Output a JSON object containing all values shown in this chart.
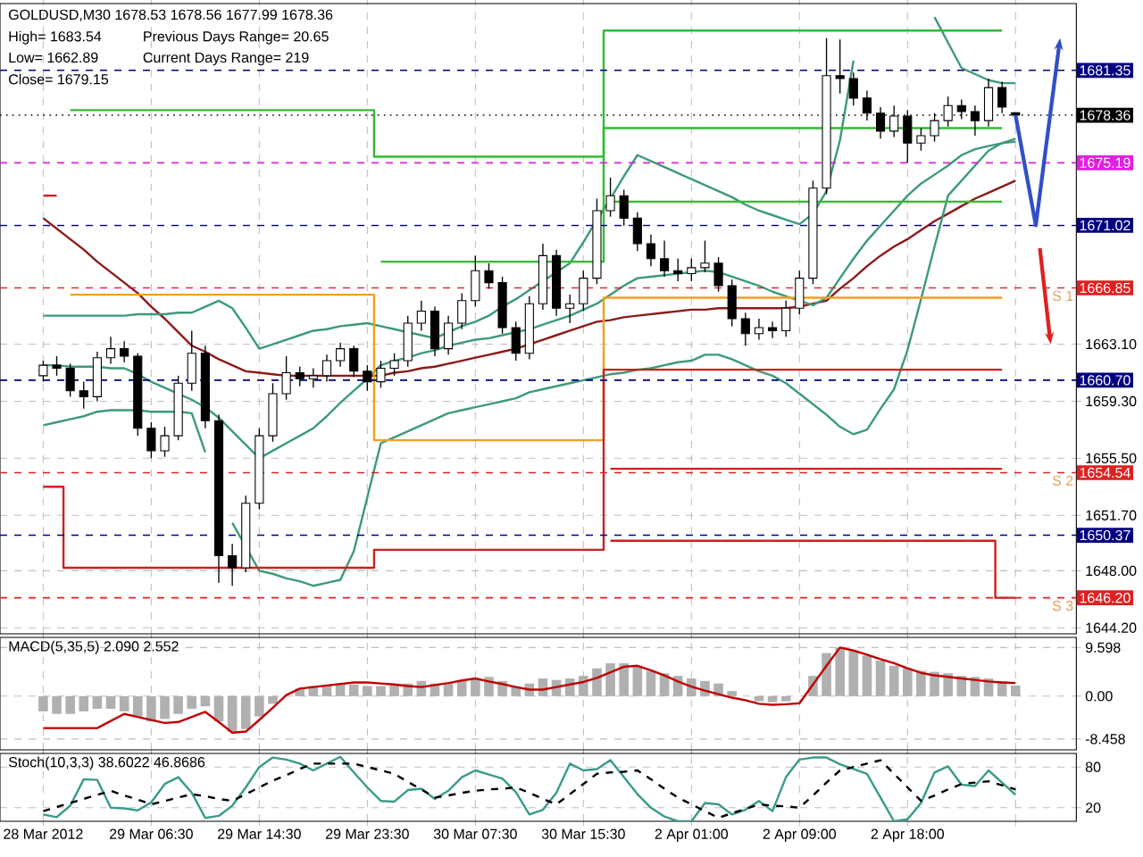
{
  "chart_data": [
    {
      "type": "candlestick",
      "title": "GOLDUSD,M30 1678.53 1678.56 1677.99 1678.36",
      "annotations": [
        "High= 1683.54",
        "Previous Days Range= 20.65",
        "Low= 1662.89",
        "Current Days Range= 219",
        "Close= 1679.15",
        {
          "text": "S 1",
          "y": 1666.85
        },
        {
          "text": "S 2",
          "y": 1654.54
        },
        {
          "text": "S 3",
          "y": 1646.2
        }
      ],
      "categories": [
        null,
        null,
        null,
        null,
        null,
        null,
        null,
        null,
        null,
        null,
        null,
        null,
        null,
        null,
        null,
        null,
        null,
        null,
        null,
        null,
        null,
        null,
        null,
        null,
        null,
        null,
        null,
        null,
        null,
        null,
        null,
        null,
        null,
        null,
        null,
        null,
        null,
        null,
        null,
        null,
        null,
        null,
        null,
        null,
        null,
        null,
        null,
        null,
        null,
        null,
        null,
        null,
        null,
        null,
        null,
        null,
        null,
        null,
        null,
        null,
        null,
        null,
        null,
        null,
        null,
        null,
        null,
        null,
        null,
        null,
        null,
        null,
        null
      ],
      "ohlc": [
        [
          1661.0,
          1662.0,
          1660.6,
          1661.7
        ],
        [
          1661.7,
          1662.3,
          1661.0,
          1661.5
        ],
        [
          1661.5,
          1661.8,
          1659.6,
          1660.0
        ],
        [
          1660.0,
          1660.6,
          1658.8,
          1659.6
        ],
        [
          1659.6,
          1662.6,
          1659.3,
          1662.2
        ],
        [
          1662.2,
          1663.6,
          1661.8,
          1662.8
        ],
        [
          1662.8,
          1663.3,
          1661.9,
          1662.3
        ],
        [
          1662.3,
          1662.5,
          1657.0,
          1657.5
        ],
        [
          1657.5,
          1657.9,
          1655.5,
          1656.0
        ],
        [
          1656.0,
          1657.6,
          1655.6,
          1657.0
        ],
        [
          1657.0,
          1661.0,
          1656.7,
          1660.5
        ],
        [
          1660.5,
          1664.0,
          1660.0,
          1662.5
        ],
        [
          1662.5,
          1663.0,
          1657.5,
          1658.0
        ],
        [
          1658.0,
          1658.4,
          1647.2,
          1649.0
        ],
        [
          1649.0,
          1649.8,
          1647.0,
          1648.2
        ],
        [
          1648.2,
          1653.0,
          1647.9,
          1652.5
        ],
        [
          1652.5,
          1657.5,
          1652.1,
          1657.0
        ],
        [
          1657.0,
          1660.5,
          1656.6,
          1659.8
        ],
        [
          1659.8,
          1662.3,
          1659.4,
          1661.2
        ],
        [
          1661.2,
          1661.6,
          1660.3,
          1660.8
        ],
        [
          1660.8,
          1661.5,
          1660.2,
          1661.0
        ],
        [
          1661.0,
          1662.4,
          1660.6,
          1662.0
        ],
        [
          1662.0,
          1663.2,
          1661.6,
          1662.8
        ],
        [
          1662.8,
          1663.0,
          1660.9,
          1661.3
        ],
        [
          1661.3,
          1661.7,
          1660.0,
          1660.6
        ],
        [
          1660.6,
          1662.0,
          1660.2,
          1661.5
        ],
        [
          1661.5,
          1662.5,
          1661.0,
          1662.0
        ],
        [
          1662.0,
          1665.0,
          1661.6,
          1664.5
        ],
        [
          1664.5,
          1666.0,
          1664.0,
          1665.3
        ],
        [
          1665.3,
          1665.6,
          1662.3,
          1662.8
        ],
        [
          1662.8,
          1665.0,
          1662.4,
          1664.5
        ],
        [
          1664.5,
          1666.5,
          1664.1,
          1666.0
        ],
        [
          1666.0,
          1669.0,
          1665.6,
          1668.0
        ],
        [
          1668.0,
          1668.5,
          1666.8,
          1667.2
        ],
        [
          1667.2,
          1667.6,
          1663.8,
          1664.2
        ],
        [
          1664.2,
          1664.6,
          1662.0,
          1662.5
        ],
        [
          1662.5,
          1666.3,
          1662.1,
          1665.8
        ],
        [
          1665.8,
          1669.8,
          1665.4,
          1669.0
        ],
        [
          1669.0,
          1669.4,
          1665.0,
          1665.5
        ],
        [
          1665.5,
          1666.4,
          1664.5,
          1665.8
        ],
        [
          1665.8,
          1668.0,
          1665.3,
          1667.5
        ],
        [
          1667.5,
          1672.8,
          1667.1,
          1672.0
        ],
        [
          1672.0,
          1674.2,
          1671.6,
          1673.0
        ],
        [
          1673.0,
          1673.4,
          1671.0,
          1671.5
        ],
        [
          1671.5,
          1671.9,
          1669.3,
          1669.8
        ],
        [
          1669.8,
          1670.4,
          1668.3,
          1668.8
        ],
        [
          1668.8,
          1670.0,
          1667.6,
          1668.0
        ],
        [
          1668.0,
          1668.8,
          1667.3,
          1667.8
        ],
        [
          1667.8,
          1668.8,
          1667.3,
          1668.2
        ],
        [
          1668.2,
          1670.0,
          1667.9,
          1668.5
        ],
        [
          1668.5,
          1668.9,
          1666.6,
          1667.0
        ],
        [
          1667.0,
          1667.4,
          1664.3,
          1664.8
        ],
        [
          1664.8,
          1665.2,
          1663.0,
          1663.8
        ],
        [
          1663.8,
          1664.8,
          1663.4,
          1664.2
        ],
        [
          1664.2,
          1664.6,
          1663.5,
          1664.0
        ],
        [
          1664.0,
          1666.0,
          1663.6,
          1665.5
        ],
        [
          1665.5,
          1668.0,
          1665.1,
          1667.5
        ],
        [
          1667.5,
          1674.0,
          1667.1,
          1673.5
        ],
        [
          1673.5,
          1683.5,
          1673.1,
          1681.0
        ],
        [
          1681.0,
          1683.4,
          1679.8,
          1680.8
        ],
        [
          1680.8,
          1681.2,
          1679.0,
          1679.5
        ],
        [
          1679.5,
          1680.0,
          1678.0,
          1678.5
        ],
        [
          1678.5,
          1678.9,
          1676.8,
          1677.3
        ],
        [
          1677.3,
          1679.0,
          1676.9,
          1678.3
        ],
        [
          1678.3,
          1678.7,
          1675.2,
          1676.5
        ],
        [
          1676.5,
          1677.5,
          1676.0,
          1677.0
        ],
        [
          1677.0,
          1678.5,
          1676.6,
          1678.0
        ],
        [
          1678.0,
          1679.6,
          1677.6,
          1679.0
        ],
        [
          1679.0,
          1679.4,
          1678.1,
          1678.6
        ],
        [
          1678.6,
          1679.0,
          1677.0,
          1678.0
        ],
        [
          1678.0,
          1680.8,
          1677.6,
          1680.2
        ],
        [
          1680.2,
          1680.6,
          1678.5,
          1678.9
        ],
        [
          1678.53,
          1678.56,
          1677.99,
          1678.36
        ]
      ],
      "series": [
        {
          "type": "line",
          "color": "#8b1a1a",
          "values": [
            1671.5,
            1670.8,
            1670.1,
            1669.4,
            1668.6,
            1667.9,
            1667.2,
            1666.5,
            1665.6,
            1664.8,
            1663.9,
            1663.0,
            1662.6,
            1662.1,
            1661.7,
            1661.3,
            1661.2,
            1661.1,
            1661.0,
            1661.0,
            1661.0,
            1661.0,
            1661.0,
            1661.0,
            1661.0,
            1661.0,
            1661.2,
            1661.3,
            1661.5,
            1661.6,
            1661.8,
            1662.0,
            1662.2,
            1662.4,
            1662.6,
            1662.8,
            1663.1,
            1663.4,
            1663.7,
            1664.0,
            1664.3,
            1664.6,
            1664.7,
            1664.9,
            1665.0,
            1665.1,
            1665.2,
            1665.3,
            1665.4,
            1665.4,
            1665.5,
            1665.5,
            1665.5,
            1665.5,
            1665.5,
            1665.5,
            1665.6,
            1665.8,
            1666.0,
            1666.8,
            1667.5,
            1668.3,
            1669.0,
            1669.6,
            1670.1,
            1670.7,
            1671.3,
            1671.8,
            1672.3,
            1672.8,
            1673.2,
            1673.6,
            1674.0
          ]
        },
        {
          "type": "line",
          "color": "#3c9a7a",
          "values": [
            1665.0,
            1665.0,
            1665.0,
            1665.0,
            1665.0,
            1665.0,
            1665.0,
            1665.1,
            1665.1,
            1665.1,
            1665.2,
            1665.2,
            1665.6,
            1666.0,
            1665.5,
            1664.2,
            1662.8,
            1663.1,
            1663.4,
            1663.7,
            1664.0,
            1664.1,
            1664.3,
            1664.4,
            1664.5,
            1664.3,
            1664.1,
            1663.9,
            1663.7,
            1663.5,
            1663.9,
            1664.3,
            1664.6,
            1665.0,
            1665.6,
            1666.1,
            1666.7,
            1667.3,
            1667.9,
            1668.5,
            1669.9,
            1671.4,
            1672.8,
            1674.3,
            1675.7,
            1675.3,
            1674.9,
            1674.5,
            1674.1,
            1673.7,
            1673.3,
            1672.9,
            1672.4,
            1672.0,
            1671.7,
            1671.4,
            1671.1,
            1671.8,
            1673.3,
            1676.7,
            1682.0,
            null,
            null,
            null,
            null,
            null,
            1684.9,
            1683.2,
            1681.5,
            1681.1,
            1680.7,
            1680.5,
            1680.5
          ]
        },
        {
          "type": "line",
          "color": "#3c9a7a",
          "values": [
            1661.7,
            1661.7,
            1661.6,
            1661.6,
            1661.6,
            1661.5,
            1661.5,
            1661.1,
            1660.6,
            1660.2,
            1659.8,
            1659.4,
            1658.9,
            1658.2,
            1657.3,
            1656.4,
            1655.5,
            1656.0,
            1656.5,
            1657.0,
            1657.5,
            1658.3,
            1659.2,
            1660.0,
            1660.8,
            1661.7,
            1662.0,
            1662.2,
            1662.5,
            1662.7,
            1663.0,
            1663.2,
            1663.4,
            1663.5,
            1663.7,
            1663.9,
            1664.1,
            1664.4,
            1664.7,
            1665.0,
            1665.4,
            1665.8,
            1666.4,
            1667.0,
            1667.5,
            1667.6,
            1667.7,
            1667.8,
            1667.9,
            1668.0,
            1667.9,
            1667.6,
            1667.3,
            1667.0,
            1666.6,
            1666.3,
            1666.0,
            1665.7,
            1666.2,
            1667.5,
            1668.8,
            1670.0,
            1671.0,
            1672.0,
            1673.0,
            1673.8,
            1674.4,
            1675.0,
            1675.7,
            1676.1,
            1676.3,
            1676.5,
            1676.8
          ]
        },
        {
          "type": "line",
          "color": "#3c9a7a",
          "values": [
            1657.7,
            1657.9,
            1658.1,
            1658.3,
            1658.6,
            1658.7,
            1658.7,
            1658.7,
            1658.6,
            1658.6,
            1658.6,
            1658.5,
            1655.9,
            null,
            1651.2,
            1649.6,
            1648.0,
            1647.8,
            1647.5,
            1647.3,
            1647.0,
            1647.2,
            1647.4,
            1649.3,
            1652.9,
            1656.5,
            1656.9,
            1657.3,
            1657.7,
            1658.1,
            1658.5,
            1658.7,
            1658.9,
            1659.1,
            1659.3,
            1659.5,
            1659.9,
            1660.1,
            1660.3,
            1660.5,
            1660.7,
            1660.9,
            1661.1,
            1661.2,
            1661.4,
            1661.5,
            1661.7,
            1661.9,
            1662.0,
            1662.4,
            1662.4,
            1662.1,
            1661.7,
            1661.3,
            1661.0,
            1660.5,
            1659.8,
            1659.1,
            1658.4,
            1657.6,
            1657.1,
            1657.4,
            1658.8,
            1660.1,
            1662.7,
            1666.1,
            1669.6,
            1673.0,
            1674.0,
            1675.0,
            1676.0,
            1676.5,
            1676.6
          ]
        },
        {
          "type": "step",
          "color": "#33bb33",
          "values": [
            null,
            null,
            1678.7,
            1678.7,
            1678.7,
            1678.7,
            1678.7,
            1678.7,
            1678.7,
            1678.7,
            1678.7,
            1678.7,
            1678.7,
            1678.7,
            1678.7,
            1678.7,
            1678.7,
            1678.7,
            1678.7,
            1678.7,
            1678.7,
            1678.7,
            1678.7,
            1678.7,
            1678.7,
            1675.6,
            1675.6,
            1675.6,
            1675.6,
            1675.6,
            1675.6,
            1675.6,
            1675.6,
            1675.6,
            1675.6,
            1675.6,
            1675.6,
            1675.6,
            1675.6,
            1675.6,
            1675.6,
            1675.6,
            1684.0,
            1684.0,
            1684.0,
            1684.0,
            1684.0,
            1684.0,
            1684.0,
            1684.0,
            1684.0,
            1684.0,
            1684.0,
            1684.0,
            1684.0,
            1684.0,
            1684.0,
            1684.0,
            1684.0,
            1684.0,
            1684.0,
            1684.0,
            1684.0,
            1684.0,
            1684.0,
            1684.0,
            1684.0,
            1684.0,
            1684.0,
            1684.0,
            1684.0,
            1684.0,
            null
          ]
        },
        {
          "type": "step",
          "color": "#33bb33",
          "values": [
            null,
            null,
            null,
            null,
            null,
            null,
            null,
            null,
            null,
            null,
            null,
            null,
            null,
            null,
            null,
            null,
            null,
            null,
            null,
            null,
            null,
            null,
            null,
            null,
            null,
            1668.6,
            1668.6,
            1668.6,
            1668.6,
            1668.6,
            1668.6,
            1668.6,
            1668.6,
            1668.6,
            1668.6,
            1668.6,
            1668.6,
            1668.6,
            1668.6,
            1668.6,
            1668.6,
            1668.6,
            1677.5,
            1677.5,
            1677.5,
            1677.5,
            1677.5,
            1677.5,
            1677.5,
            1677.5,
            1677.5,
            1677.5,
            1677.5,
            1677.5,
            1677.5,
            1677.5,
            1677.5,
            1677.5,
            1677.5,
            1677.5,
            1677.5,
            1677.5,
            1677.5,
            1677.5,
            1677.5,
            1677.5,
            1677.5,
            1677.5,
            1677.5,
            1677.5,
            1677.5,
            1677.5,
            null
          ]
        },
        {
          "type": "step",
          "color": "#33bb33",
          "values": [
            null,
            null,
            null,
            null,
            null,
            null,
            null,
            null,
            null,
            null,
            null,
            null,
            null,
            null,
            null,
            null,
            null,
            null,
            null,
            null,
            null,
            null,
            null,
            null,
            null,
            null,
            null,
            null,
            null,
            null,
            null,
            null,
            null,
            null,
            null,
            null,
            null,
            null,
            null,
            null,
            null,
            null,
            1672.6,
            1672.6,
            1672.6,
            1672.6,
            1672.6,
            1672.6,
            1672.6,
            1672.6,
            1672.6,
            1672.6,
            1672.6,
            1672.6,
            1672.6,
            1672.6,
            1672.6,
            1672.6,
            1672.6,
            1672.6,
            1672.6,
            1672.6,
            1672.6,
            1672.6,
            1672.6,
            1672.6,
            1672.6,
            1672.6,
            1672.6,
            1672.6,
            1672.6,
            1672.6,
            null
          ]
        },
        {
          "type": "step",
          "color": "#f0a020",
          "values": [
            null,
            null,
            1666.4,
            1666.4,
            1666.4,
            1666.4,
            1666.4,
            1666.4,
            1666.4,
            1666.4,
            1666.4,
            1666.4,
            1666.4,
            1666.4,
            1666.4,
            1666.4,
            1666.4,
            1666.4,
            1666.4,
            1666.4,
            1666.4,
            1666.4,
            1666.4,
            1666.4,
            1666.4,
            1656.7,
            1656.7,
            1656.7,
            1656.7,
            1656.7,
            1656.7,
            1656.7,
            1656.7,
            1656.7,
            1656.7,
            1656.7,
            1656.7,
            1656.7,
            1656.7,
            1656.7,
            1656.7,
            1656.7,
            1666.2,
            1666.2,
            1666.2,
            1666.2,
            1666.2,
            1666.2,
            1666.2,
            1666.2,
            1666.2,
            1666.2,
            1666.2,
            1666.2,
            1666.2,
            1666.2,
            1666.2,
            1666.2,
            1666.2,
            1666.2,
            1666.2,
            1666.2,
            1666.2,
            1666.2,
            1666.2,
            1666.2,
            1666.2,
            1666.2,
            1666.2,
            1666.2,
            1666.2,
            1666.2,
            null
          ]
        },
        {
          "type": "step",
          "color": "#cc2020",
          "values": [
            1653.6,
            1653.6,
            1648.2,
            1648.2,
            1648.2,
            1648.2,
            1648.2,
            1648.2,
            1648.2,
            1648.2,
            1648.2,
            1648.2,
            1648.2,
            1648.2,
            1648.2,
            1648.2,
            1648.2,
            1648.2,
            1648.2,
            1648.2,
            1648.2,
            1648.2,
            1648.2,
            1648.2,
            1648.2,
            1649.4,
            1649.4,
            1649.4,
            1649.4,
            1649.4,
            1649.4,
            1649.4,
            1649.4,
            1649.4,
            1649.4,
            1649.4,
            1649.4,
            1649.4,
            1649.4,
            1649.4,
            1649.4,
            1649.4,
            1661.4,
            1661.4,
            1661.4,
            1661.4,
            1661.4,
            1661.4,
            1661.4,
            1661.4,
            1661.4,
            1661.4,
            1661.4,
            1661.4,
            1661.4,
            1661.4,
            1661.4,
            1661.4,
            1661.4,
            1661.4,
            1661.4,
            1661.4,
            1661.4,
            1661.4,
            1661.4,
            1661.4,
            1661.4,
            1661.4,
            1661.4,
            1661.4,
            1661.4,
            1661.4,
            null
          ]
        },
        {
          "type": "step",
          "color": "#cc2020",
          "values": [
            null,
            null,
            null,
            null,
            null,
            null,
            null,
            null,
            null,
            null,
            null,
            null,
            null,
            null,
            null,
            null,
            null,
            null,
            null,
            null,
            null,
            null,
            null,
            null,
            null,
            null,
            null,
            null,
            null,
            null,
            null,
            null,
            null,
            null,
            null,
            null,
            null,
            null,
            null,
            null,
            null,
            null,
            1654.8,
            1654.8,
            1654.8,
            1654.8,
            1654.8,
            1654.8,
            1654.8,
            1654.8,
            1654.8,
            1654.8,
            1654.8,
            1654.8,
            1654.8,
            1654.8,
            1654.8,
            1654.8,
            1654.8,
            1654.8,
            1654.8,
            1654.8,
            1654.8,
            1654.8,
            1654.8,
            1654.8,
            1654.8,
            1654.8,
            1654.8,
            1654.8,
            1654.8,
            1654.8,
            null
          ]
        },
        {
          "type": "step",
          "color": "#cc2020",
          "values": [
            null,
            null,
            null,
            null,
            null,
            null,
            null,
            null,
            null,
            null,
            null,
            null,
            null,
            null,
            null,
            null,
            null,
            null,
            null,
            null,
            null,
            null,
            null,
            null,
            null,
            null,
            null,
            null,
            null,
            null,
            null,
            null,
            null,
            null,
            null,
            null,
            null,
            null,
            null,
            null,
            null,
            null,
            1650.0,
            1650.0,
            1650.0,
            1650.0,
            1650.0,
            1650.0,
            1650.0,
            1650.0,
            1650.0,
            1650.0,
            1650.0,
            1650.0,
            1650.0,
            1650.0,
            1650.0,
            1650.0,
            1650.0,
            1650.0,
            1650.0,
            1650.0,
            1650.0,
            1650.0,
            1650.0,
            1650.0,
            1650.0,
            1650.0,
            1650.0,
            1650.0,
            1650.0,
            1646.2,
            1646.2
          ]
        },
        {
          "type": "step",
          "color": "#cc2020",
          "values": [
            1673.0,
            1673.0,
            null,
            null,
            null,
            null,
            null,
            null,
            null,
            null,
            null,
            null,
            null,
            null,
            null,
            null,
            null,
            null,
            null,
            null,
            null,
            null,
            null,
            null,
            null,
            null,
            null,
            null,
            null,
            null,
            null,
            null,
            null,
            null,
            null,
            null,
            null,
            null,
            null,
            null,
            null,
            null,
            null,
            null,
            null,
            null,
            null,
            null,
            null,
            null,
            null,
            null,
            null,
            null,
            null,
            null,
            null,
            null,
            null,
            null,
            null,
            null,
            null,
            null,
            null,
            null,
            null,
            null,
            null,
            null,
            null,
            null,
            null
          ]
        }
      ],
      "ref_lines": [
        {
          "axis": "y",
          "value": 1681.35,
          "label": "1681.35",
          "color": "#000080",
          "line_style": "dashed"
        },
        {
          "axis": "y",
          "value": 1678.36,
          "label": "1678.36",
          "color": "#000000",
          "line_style": "dotted"
        },
        {
          "axis": "y",
          "value": 1675.19,
          "label": "1675.19",
          "color": "#e020e0",
          "line_style": "dashed"
        },
        {
          "axis": "y",
          "value": 1671.02,
          "label": "1671.02",
          "color": "#000080",
          "line_style": "dashed"
        },
        {
          "axis": "y",
          "value": 1666.85,
          "label": "1666.85",
          "color": "#e02020",
          "line_style": "dashed"
        },
        {
          "axis": "y",
          "value": 1660.7,
          "label": "1660.70",
          "color": "#000080",
          "line_style": "dashed"
        },
        {
          "axis": "y",
          "value": 1654.54,
          "label": "1654.54",
          "color": "#e02020",
          "line_style": "dashed"
        },
        {
          "axis": "y",
          "value": 1650.37,
          "label": "1650.37",
          "color": "#000080",
          "line_style": "dashed"
        },
        {
          "axis": "y",
          "value": 1646.2,
          "label": "1646.20",
          "color": "#e02020",
          "line_style": "dashed"
        }
      ],
      "ylim": [
        1643.8,
        1685.8
      ],
      "yticks": [
        {
          "value": 1644.2,
          "label": "1644.20"
        },
        {
          "value": 1648.0,
          "label": "1648.00"
        },
        {
          "value": 1651.7,
          "label": "1651.70"
        },
        {
          "value": 1655.5,
          "label": "1655.50"
        },
        {
          "value": 1659.3,
          "label": "1659.30"
        },
        {
          "value": 1663.1,
          "label": "1663.10"
        }
      ],
      "grid": true,
      "tick_labels": "y"
    },
    {
      "type": "bar",
      "title": "MACD(5,35,5) 2.090 2.552",
      "categories": [
        null,
        null,
        null,
        null,
        null,
        null,
        null,
        null,
        null,
        null,
        null,
        null,
        null,
        null,
        null,
        null,
        null,
        null,
        null,
        null,
        null,
        null,
        null,
        null,
        null,
        null,
        null,
        null,
        null,
        null,
        null,
        null,
        null,
        null,
        null,
        null,
        null,
        null,
        null,
        null,
        null,
        null,
        null,
        null,
        null,
        null,
        null,
        null,
        null,
        null,
        null,
        null,
        null,
        null,
        null,
        null,
        null,
        null,
        null,
        null,
        null,
        null,
        null,
        null,
        null,
        null,
        null,
        null,
        null,
        null,
        null,
        null,
        null
      ],
      "series": [
        {
          "color": "#b0b0b0",
          "values": [
            -3,
            -3.5,
            -3.5,
            -3,
            -2.5,
            -2.5,
            -3,
            -4,
            -5,
            -4.5,
            -3.5,
            -2.5,
            -2,
            -5,
            -7,
            -6.5,
            -4,
            -1.5,
            null,
            1.5,
            2,
            2.2,
            2.5,
            2.3,
            2,
            2,
            2.2,
            2.5,
            3,
            2.5,
            2.6,
            3,
            3.5,
            3.8,
            3,
            2,
            2.5,
            3.5,
            3.2,
            3.5,
            4,
            5.5,
            6.5,
            6.5,
            6,
            5,
            4.5,
            4,
            3.5,
            3,
            2.5,
            1,
            null,
            -1,
            -1.2,
            -1,
            0,
            4,
            8.5,
            9.6,
            9,
            8,
            7,
            6,
            5.5,
            5,
            4.8,
            4.5,
            4,
            3.8,
            3.5,
            3,
            2.1
          ]
        },
        {
          "type": "line",
          "color": "#c00000",
          "values": [
            -6.3,
            -6.3,
            -6.3,
            -6.3,
            -6.3,
            -4.9,
            -3.5,
            -4.1,
            -4.7,
            -5.3,
            -5.1,
            -4.1,
            -3.1,
            -5.1,
            -7.2,
            -7.0,
            -4.7,
            -2.3,
            0.2,
            1.5,
            1.8,
            2.1,
            2.4,
            2.7,
            2.7,
            2.5,
            2.3,
            2.0,
            1.8,
            2.2,
            2.6,
            3.1,
            3.5,
            2.9,
            2.4,
            1.8,
            1.3,
            1.3,
            1.8,
            2.3,
            2.8,
            3.6,
            4.7,
            5.8,
            6.0,
            5.1,
            4.1,
            2.9,
            1.9,
            1.1,
            0.4,
            -0.3,
            -0.8,
            -1.5,
            -1.7,
            -1.6,
            -1.4,
            2.3,
            6.0,
            9.6,
            9.0,
            8.2,
            7.3,
            6.5,
            5.5,
            4.6,
            4.1,
            3.8,
            3.5,
            3.2,
            2.9,
            2.7,
            2.6
          ]
        }
      ],
      "ylim": [
        -10.6,
        11.6
      ],
      "yticks": [
        -8.458,
        {
          "value": 0,
          "label": "0.00"
        },
        9.598
      ],
      "grid": true,
      "tick_labels": "y"
    },
    {
      "type": "line",
      "title": "Stoch(10,3,3) 38.6022 46.8686",
      "categories": [
        "28 Mar 2012",
        null,
        null,
        null,
        null,
        null,
        null,
        null,
        "29 Mar 06:30",
        null,
        null,
        null,
        null,
        null,
        null,
        null,
        "29 Mar 14:30",
        null,
        null,
        null,
        null,
        null,
        null,
        null,
        "29 Mar 23:30",
        null,
        null,
        null,
        null,
        null,
        null,
        null,
        "30 Mar 07:30",
        null,
        null,
        null,
        null,
        null,
        null,
        null,
        "30 Mar 15:30",
        null,
        null,
        null,
        null,
        null,
        null,
        null,
        "2 Apr 01:00",
        null,
        null,
        null,
        null,
        null,
        null,
        null,
        "2 Apr 09:00",
        null,
        null,
        null,
        null,
        null,
        null,
        null,
        "2 Apr 18:00",
        null,
        null,
        null,
        null,
        null,
        null,
        null,
        null
      ],
      "series": [
        {
          "color": "#3a9a8a",
          "values": [
            10,
            6,
            23,
            62,
            61,
            20,
            19,
            16,
            28,
            55,
            65,
            42,
            5,
            8,
            23,
            50,
            80,
            94,
            91,
            85,
            75,
            85,
            95,
            72,
            50,
            30,
            29,
            46,
            48,
            33,
            45,
            65,
            75,
            69,
            63,
            43,
            10,
            17,
            42,
            85,
            75,
            77,
            90,
            65,
            40,
            20,
            7,
            0,
            0,
            27,
            25,
            10,
            17,
            30,
            15,
            65,
            91,
            94,
            94,
            84,
            77,
            70,
            35,
            0,
            3,
            27,
            72,
            81,
            54,
            52,
            75,
            57,
            39
          ]
        },
        {
          "color": "#000000",
          "line_style": "dashed",
          "values": [
            15,
            21,
            27,
            33,
            39,
            45,
            38,
            32,
            25,
            30,
            35,
            40,
            37,
            33,
            30,
            40,
            50,
            60,
            68,
            77,
            85,
            85,
            85,
            85,
            80,
            75,
            70,
            58,
            47,
            35,
            38,
            42,
            45,
            47,
            48,
            50,
            42,
            33,
            25,
            40,
            55,
            70,
            72,
            73,
            75,
            62,
            48,
            35,
            25,
            15,
            5,
            12,
            18,
            25,
            23,
            22,
            20,
            38,
            57,
            75,
            80,
            85,
            90,
            70,
            50,
            30,
            38,
            47,
            55,
            57,
            59,
            53,
            47
          ]
        }
      ],
      "ylim": [
        0,
        100
      ],
      "yticks": [
        20,
        80
      ],
      "grid": true
    }
  ]
}
